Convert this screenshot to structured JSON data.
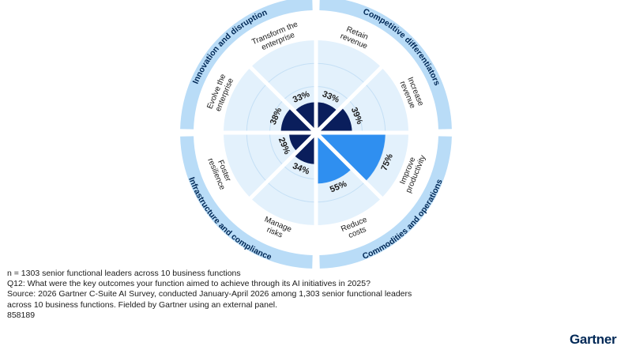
{
  "chart_data": {
    "type": "polar-bar",
    "title": "",
    "unit": "%",
    "categories": [
      {
        "label": "Retain revenue",
        "value": 33,
        "color": "#0a1e5c"
      },
      {
        "label": "Increase revenue",
        "value": 39,
        "color": "#0a1e5c"
      },
      {
        "label": "Improve productivity",
        "value": 75,
        "color": "#2f8ff0"
      },
      {
        "label": "Reduce costs",
        "value": 55,
        "color": "#2f8ff0"
      },
      {
        "label": "Manage risks",
        "value": 34,
        "color": "#0a1e5c"
      },
      {
        "label": "Foster resilience",
        "value": 29,
        "color": "#0a1e5c"
      },
      {
        "label": "Evolve the enterprise",
        "value": 38,
        "color": "#0a1e5c"
      },
      {
        "label": "Transform the enterprise",
        "value": 33,
        "color": "#0a1e5c"
      }
    ],
    "category_lines": [
      [
        "Retain",
        "revenue"
      ],
      [
        "Increase",
        "revenue"
      ],
      [
        "Improve",
        "productivity"
      ],
      [
        "Reduce",
        "costs"
      ],
      [
        "Manage",
        "risks"
      ],
      [
        "Foster",
        "resilience"
      ],
      [
        "Evolve the",
        "enterprise"
      ],
      [
        "Transform the",
        "enterprise"
      ]
    ],
    "groups": [
      {
        "label": "Competitive differentiators",
        "quadrant": "top-right"
      },
      {
        "label": "Commodities and operations",
        "quadrant": "bottom-right"
      },
      {
        "label": "Infrastructure and compliance",
        "quadrant": "bottom-left"
      },
      {
        "label": "Innovation and disruption",
        "quadrant": "top-left"
      }
    ],
    "rlim": [
      0,
      100
    ],
    "grid": true
  },
  "footnote": {
    "n": "n = 1303 senior functional leaders across 10 business functions",
    "question": "Q12: What were the key outcomes your function aimed to achieve through its AI initiatives in 2025?",
    "source": "Source: 2026 Gartner C-Suite AI Survey, conducted January-April 2026 among 1,303 senior functional leaders across 10 business functions. Fielded by Gartner using an external panel.",
    "id": "858189"
  },
  "logo": {
    "text": "Gartner"
  },
  "colors": {
    "band": "#b9dcf7",
    "ring_fill": "#ffffff",
    "grid_fill": "#e3f1fc",
    "grid_line": "#c4dff5",
    "text": "#1a1a1a",
    "group_text": "#002856"
  }
}
